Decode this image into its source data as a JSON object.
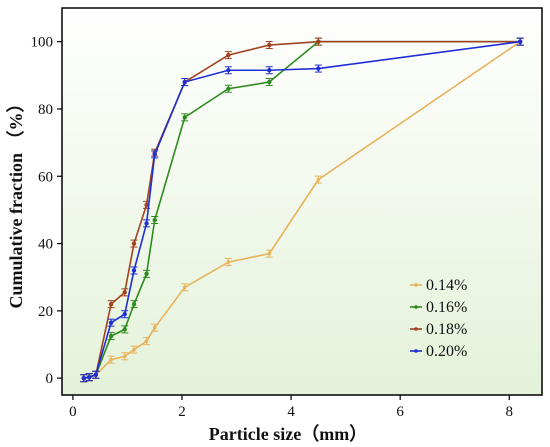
{
  "chart_data": {
    "type": "line",
    "xlabel": "Particle size（mm）",
    "ylabel": "Cumulative fraction （%）",
    "xlim": [
      -0.2,
      8.6
    ],
    "ylim": [
      -5,
      110
    ],
    "xticks": [
      0,
      2,
      4,
      6,
      8
    ],
    "yticks": [
      0,
      20,
      40,
      60,
      80,
      100
    ],
    "grid": false,
    "legend_position": "bottom-right",
    "background": "light green gradient",
    "error_bars": true,
    "series": [
      {
        "name": "0.14%",
        "color": "#E8B25A",
        "marker": "star",
        "x": [
          0.2,
          0.3,
          0.42,
          0.7,
          0.95,
          1.12,
          1.35,
          1.5,
          2.05,
          2.85,
          3.6,
          4.5,
          8.2
        ],
        "y": [
          0,
          0.3,
          1.0,
          5.5,
          6.5,
          8.5,
          11,
          15,
          27,
          34.5,
          37,
          59,
          100
        ]
      },
      {
        "name": "0.16%",
        "color": "#2E8B1E",
        "marker": "dot",
        "x": [
          0.2,
          0.3,
          0.42,
          0.7,
          0.95,
          1.12,
          1.35,
          1.5,
          2.05,
          2.85,
          3.6,
          4.5,
          8.2
        ],
        "y": [
          0,
          0.3,
          1.0,
          12.5,
          14.5,
          22,
          31,
          47,
          77.5,
          86,
          88,
          100,
          100
        ]
      },
      {
        "name": "0.18%",
        "color": "#A0421E",
        "marker": "dot",
        "x": [
          0.2,
          0.3,
          0.42,
          0.7,
          0.95,
          1.12,
          1.35,
          1.5,
          2.05,
          2.85,
          3.6,
          4.5,
          8.2
        ],
        "y": [
          0,
          0.3,
          1.0,
          22,
          25.5,
          40,
          51.5,
          67,
          88,
          96,
          99,
          100,
          100
        ]
      },
      {
        "name": "0.20%",
        "color": "#1F2FD6",
        "marker": "dot",
        "x": [
          0.2,
          0.3,
          0.42,
          0.7,
          0.95,
          1.12,
          1.35,
          1.5,
          2.05,
          2.85,
          3.6,
          4.5,
          8.2
        ],
        "y": [
          0,
          0.3,
          1.0,
          16.5,
          19,
          32,
          46,
          66.5,
          88,
          91.5,
          91.5,
          92,
          100
        ]
      }
    ]
  }
}
